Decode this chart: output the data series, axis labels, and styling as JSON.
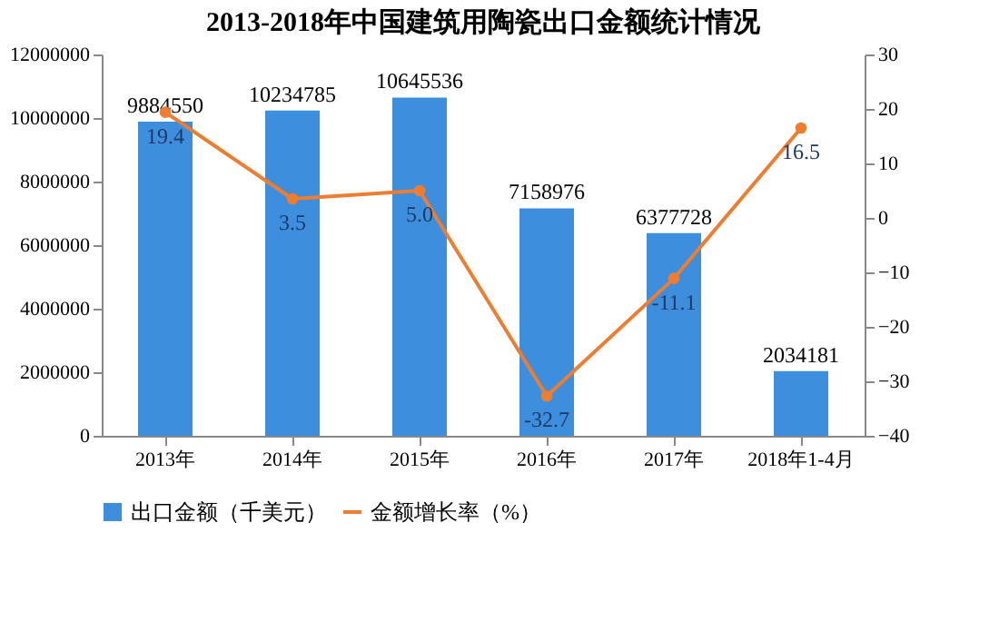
{
  "chart_data": {
    "type": "bar",
    "title": "2013-2018年中国建筑用陶瓷出口金额统计情况",
    "categories": [
      "2013年",
      "2014年",
      "2015年",
      "2016年",
      "2017年",
      "2018年1-4月"
    ],
    "series": [
      {
        "name": "出口金额（千美元）",
        "color": "#3d8fde",
        "values": [
          9884550,
          10234785,
          10645536,
          7158976,
          6377728,
          2034181
        ],
        "value_labels": [
          "9884550",
          "10234785",
          "10645536",
          "7158976",
          "6377728",
          "2034181"
        ]
      },
      {
        "name": "金额增长率（%）",
        "type": "line",
        "axis": "y2",
        "color": "#ed7d31",
        "values": [
          19.4,
          3.5,
          5.0,
          -32.7,
          -11.1,
          16.5
        ],
        "value_labels": [
          "19.4",
          "3.5",
          "5.0",
          "-32.7",
          "-11.1",
          "16.5"
        ]
      }
    ],
    "ylim": [
      0,
      12000000
    ],
    "yticks": [
      0,
      2000000,
      4000000,
      6000000,
      8000000,
      10000000,
      12000000
    ],
    "y2lim": [
      -40,
      30
    ],
    "y2ticks": [
      -40,
      -30,
      -20,
      -10,
      0,
      10,
      20,
      30
    ],
    "legend": "bottom",
    "marker": "circle",
    "grid": false
  }
}
